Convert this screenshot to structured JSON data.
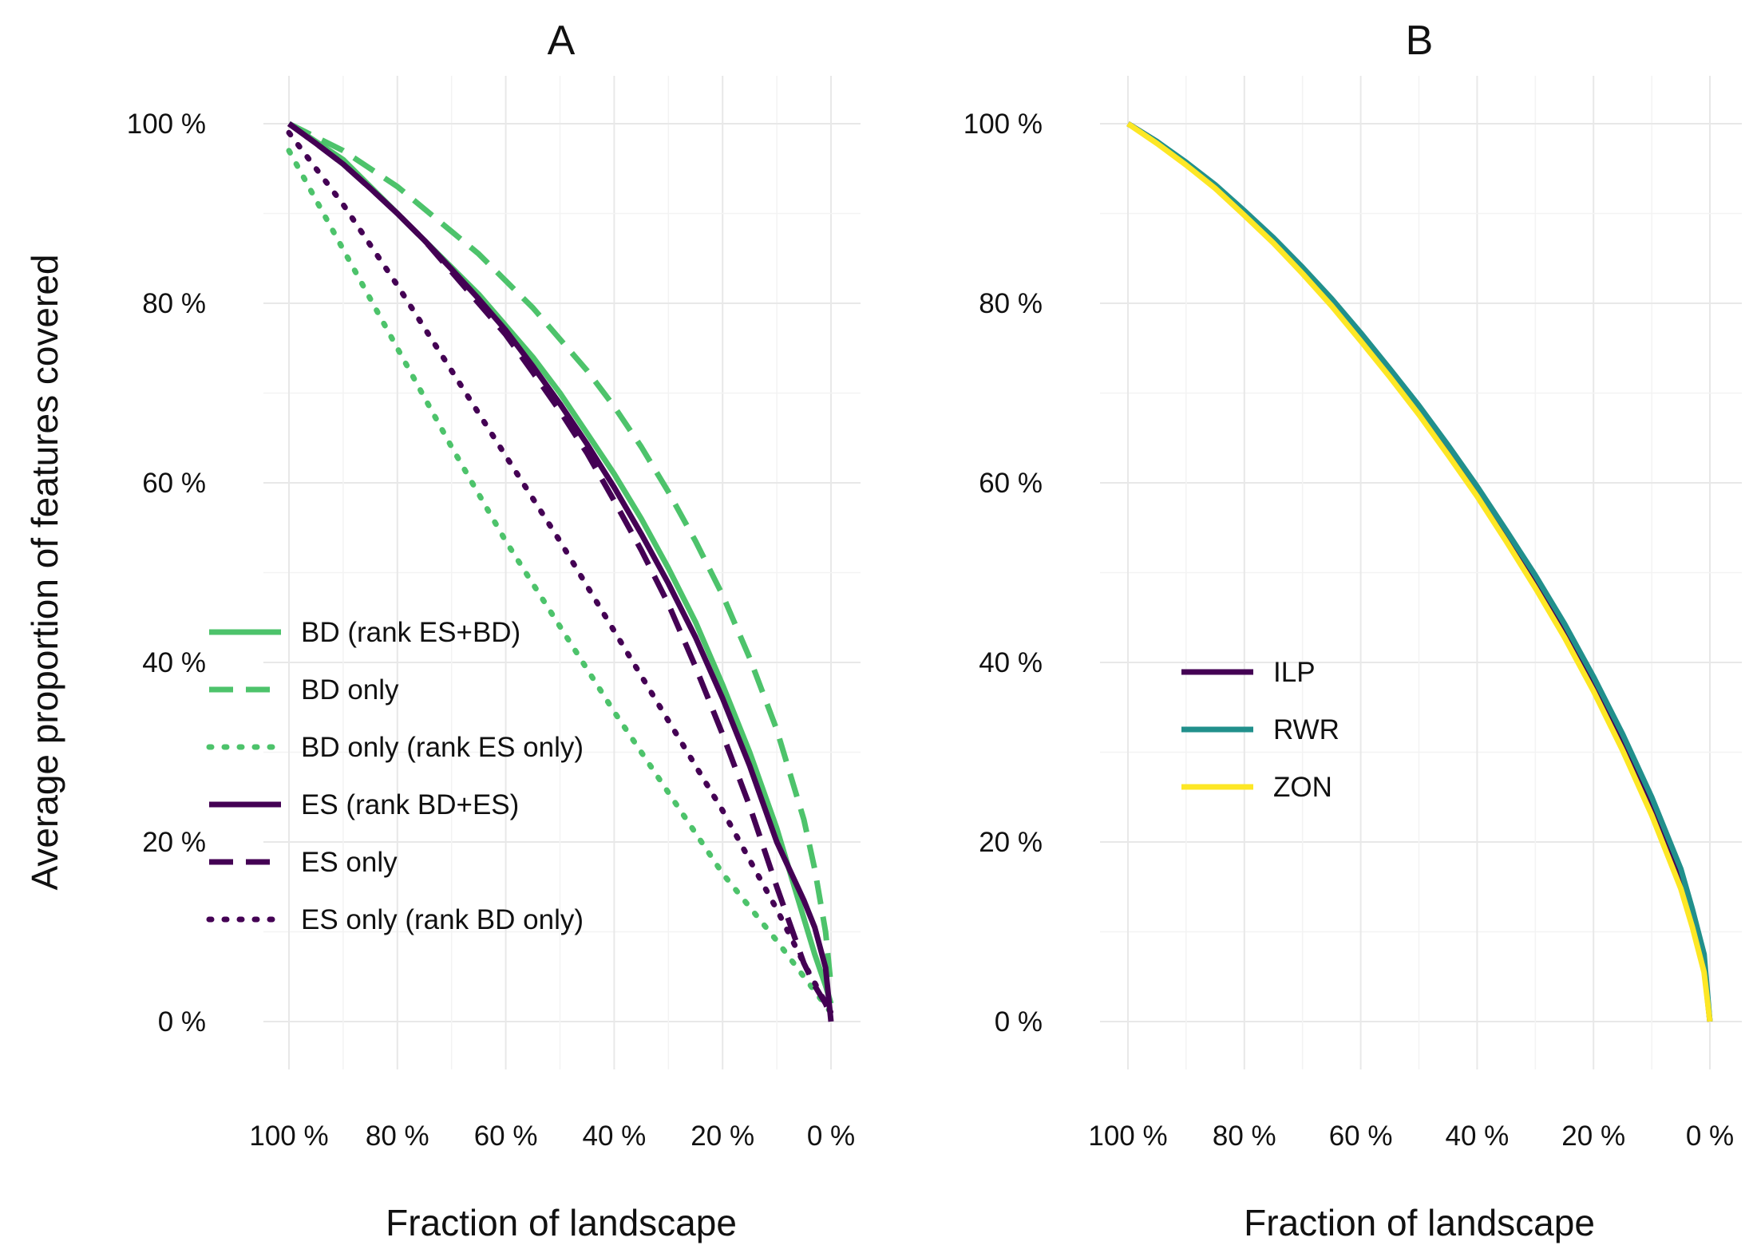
{
  "chart_data": [
    {
      "type": "line",
      "title": "A",
      "xlabel": "Fraction of landscape",
      "ylabel": "Average proportion of features covered",
      "x_reversed": true,
      "xlim": [
        100,
        0
      ],
      "ylim": [
        0,
        100
      ],
      "x_ticks": [
        100,
        80,
        60,
        40,
        20,
        0
      ],
      "x_tick_labels": [
        "100 %",
        "80 %",
        "60 %",
        "40 %",
        "20 %",
        "0 %"
      ],
      "y_ticks": [
        0,
        20,
        40,
        60,
        80,
        100
      ],
      "y_tick_labels": [
        "0 %",
        "20 %",
        "40 %",
        "60 %",
        "80 %",
        "100 %"
      ],
      "grid": true,
      "legend": "bottom-left",
      "series": [
        {
          "name": "BD (rank ES+BD)",
          "color": "#4DC36B",
          "dash": "solid",
          "x": [
            100,
            95,
            90,
            85,
            80,
            75,
            70,
            65,
            60,
            55,
            50,
            45,
            40,
            35,
            30,
            25,
            20,
            15,
            10,
            5,
            3,
            1,
            0
          ],
          "y": [
            100,
            98,
            96,
            93,
            90,
            87,
            84,
            81,
            77.5,
            74,
            70,
            65.5,
            61,
            56,
            50.5,
            44.5,
            37.5,
            30,
            21.5,
            11.5,
            7.5,
            4,
            2
          ]
        },
        {
          "name": "BD only",
          "color": "#4DC36B",
          "dash": "dashed",
          "x": [
            100,
            95,
            90,
            85,
            80,
            75,
            70,
            65,
            60,
            55,
            50,
            45,
            40,
            35,
            30,
            25,
            20,
            15,
            10,
            5,
            3,
            1,
            0
          ],
          "y": [
            100,
            98.5,
            97,
            95,
            93,
            90.5,
            88,
            85.5,
            82.5,
            79.5,
            76,
            72.5,
            68.5,
            64,
            59,
            53.5,
            47.5,
            40.5,
            32.5,
            22.5,
            17,
            10,
            4
          ]
        },
        {
          "name": "BD only (rank ES only)",
          "color": "#4DC36B",
          "dash": "dotted",
          "x": [
            100,
            90,
            80,
            70,
            60,
            50,
            40,
            30,
            20,
            10,
            5,
            0
          ],
          "y": [
            97,
            86,
            75,
            64,
            53.5,
            44,
            34.5,
            25.5,
            16.5,
            9,
            5,
            1
          ]
        },
        {
          "name": "ES (rank BD+ES)",
          "color": "#440154",
          "dash": "solid",
          "x": [
            100,
            95,
            90,
            85,
            80,
            75,
            70,
            65,
            60,
            55,
            50,
            45,
            40,
            35,
            30,
            25,
            20,
            15,
            10,
            5,
            3,
            1,
            0
          ],
          "y": [
            100,
            97.8,
            95.5,
            92.8,
            90,
            87,
            83.8,
            80.5,
            77,
            73,
            68.8,
            64.3,
            59.5,
            54.3,
            48.8,
            42.8,
            36,
            28.5,
            20,
            13.5,
            10.5,
            6,
            0
          ]
        },
        {
          "name": "ES only",
          "color": "#440154",
          "dash": "dashed",
          "x": [
            100,
            95,
            90,
            85,
            80,
            75,
            70,
            65,
            60,
            55,
            50,
            45,
            40,
            35,
            30,
            25,
            20,
            15,
            10,
            5,
            3,
            1,
            0
          ],
          "y": [
            100,
            97.8,
            95.5,
            92.8,
            90,
            87,
            83.5,
            80,
            76.5,
            72.3,
            68,
            63.3,
            58,
            52.5,
            46.5,
            39.5,
            32,
            24,
            15,
            6.5,
            4,
            2,
            0.5
          ]
        },
        {
          "name": "ES only (rank BD only)",
          "color": "#440154",
          "dash": "dotted",
          "x": [
            100,
            90,
            80,
            70,
            60,
            50,
            40,
            30,
            20,
            10,
            5,
            0
          ],
          "y": [
            99,
            91,
            82,
            72.5,
            63,
            53.5,
            43.5,
            33.5,
            23.5,
            12.5,
            6.5,
            1
          ]
        }
      ]
    },
    {
      "type": "line",
      "title": "B",
      "xlabel": "Fraction of landscape",
      "ylabel": "",
      "x_reversed": true,
      "xlim": [
        100,
        0
      ],
      "ylim": [
        0,
        100
      ],
      "x_ticks": [
        100,
        80,
        60,
        40,
        20,
        0
      ],
      "x_tick_labels": [
        "100 %",
        "80 %",
        "60 %",
        "40 %",
        "20 %",
        "0 %"
      ],
      "y_ticks": [
        0,
        20,
        40,
        60,
        80,
        100
      ],
      "y_tick_labels": [
        "0 %",
        "20 %",
        "40 %",
        "60 %",
        "80 %",
        "100 %"
      ],
      "grid": true,
      "legend": "center-left",
      "series": [
        {
          "name": "ILP",
          "color": "#440154",
          "dash": "solid",
          "x": [
            100,
            95,
            90,
            85,
            80,
            75,
            70,
            65,
            60,
            55,
            50,
            45,
            40,
            35,
            30,
            25,
            20,
            15,
            10,
            5,
            3,
            1,
            0
          ],
          "y": [
            100,
            98,
            95.5,
            93,
            90,
            87,
            83.5,
            80,
            76,
            72,
            68,
            63.5,
            59,
            54,
            49,
            43.5,
            37.5,
            31,
            24,
            15.5,
            11,
            6,
            0
          ]
        },
        {
          "name": "RWR",
          "color": "#21908C",
          "dash": "solid",
          "x": [
            100,
            95,
            90,
            85,
            80,
            75,
            70,
            65,
            60,
            55,
            50,
            45,
            40,
            35,
            30,
            25,
            20,
            15,
            10,
            5,
            3,
            1,
            0
          ],
          "y": [
            100,
            98,
            95.7,
            93.2,
            90.3,
            87.3,
            84,
            80.5,
            76.7,
            72.7,
            68.6,
            64.2,
            59.6,
            54.7,
            49.7,
            44.3,
            38.4,
            32,
            25,
            17,
            12.5,
            7.5,
            0
          ]
        },
        {
          "name": "ZON",
          "color": "#FDE725",
          "dash": "solid",
          "x": [
            100,
            95,
            90,
            85,
            80,
            75,
            70,
            65,
            60,
            55,
            50,
            45,
            40,
            35,
            30,
            25,
            20,
            15,
            10,
            5,
            3,
            1,
            0
          ],
          "y": [
            100,
            97.8,
            95.4,
            92.8,
            89.8,
            86.7,
            83.3,
            79.7,
            75.8,
            71.8,
            67.6,
            63.1,
            58.5,
            53.5,
            48.3,
            42.8,
            36.8,
            30.2,
            23,
            14.8,
            10.5,
            5.5,
            0
          ]
        }
      ]
    }
  ]
}
